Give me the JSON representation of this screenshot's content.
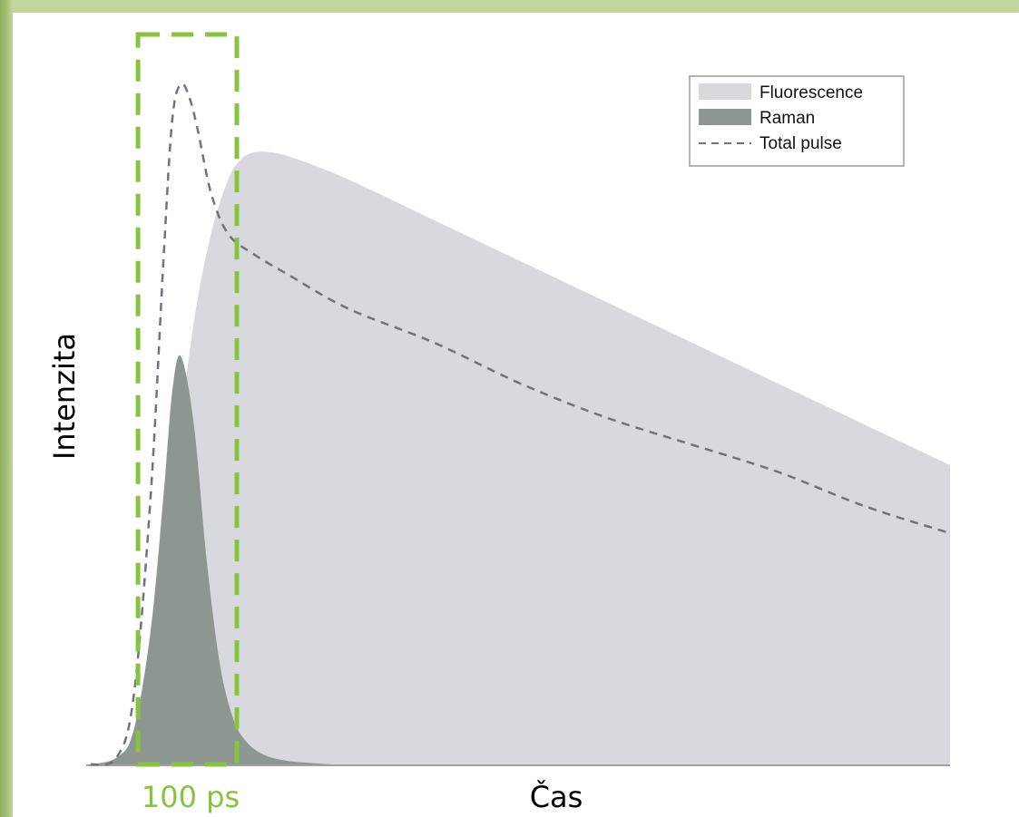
{
  "chart_data": {
    "type": "area",
    "title": "",
    "xlabel": "Čas",
    "ylabel": "Intenzita",
    "annotation": "100 ps",
    "xlim": [
      0,
      1000
    ],
    "ylim": [
      0,
      1
    ],
    "grid": false,
    "legend_position": "top-right",
    "series": [
      {
        "name": "Fluorescence",
        "kind": "area",
        "color": "#d8d9de",
        "x": [
          0,
          40,
          60,
          80,
          100,
          120,
          140,
          160,
          175,
          190,
          210,
          240,
          300,
          400,
          500,
          600,
          700,
          800,
          900,
          1000
        ],
        "y": [
          0.0,
          0.01,
          0.06,
          0.22,
          0.45,
          0.65,
          0.78,
          0.86,
          0.89,
          0.9,
          0.9,
          0.89,
          0.86,
          0.8,
          0.74,
          0.68,
          0.62,
          0.56,
          0.5,
          0.44
        ]
      },
      {
        "name": "Raman",
        "kind": "area",
        "color": "#8d9690",
        "x": [
          0,
          30,
          50,
          70,
          85,
          95,
          105,
          120,
          135,
          150,
          165,
          180,
          200,
          230,
          280
        ],
        "y": [
          0.0,
          0.01,
          0.05,
          0.2,
          0.4,
          0.55,
          0.6,
          0.5,
          0.3,
          0.15,
          0.07,
          0.035,
          0.015,
          0.005,
          0.0
        ]
      },
      {
        "name": "Total pulse",
        "kind": "dashed-line",
        "color": "#6f747c",
        "x": [
          0,
          30,
          50,
          70,
          85,
          95,
          105,
          115,
          125,
          140,
          160,
          190,
          230,
          300,
          400,
          500,
          600,
          700,
          800,
          900,
          1000
        ],
        "y": [
          0.0,
          0.01,
          0.1,
          0.4,
          0.75,
          0.95,
          1.0,
          0.98,
          0.93,
          0.84,
          0.78,
          0.75,
          0.72,
          0.67,
          0.62,
          0.56,
          0.51,
          0.47,
          0.43,
          0.38,
          0.34
        ]
      }
    ],
    "highlight_window": {
      "x_range": [
        55,
        170
      ],
      "color": "#86c440"
    }
  }
}
